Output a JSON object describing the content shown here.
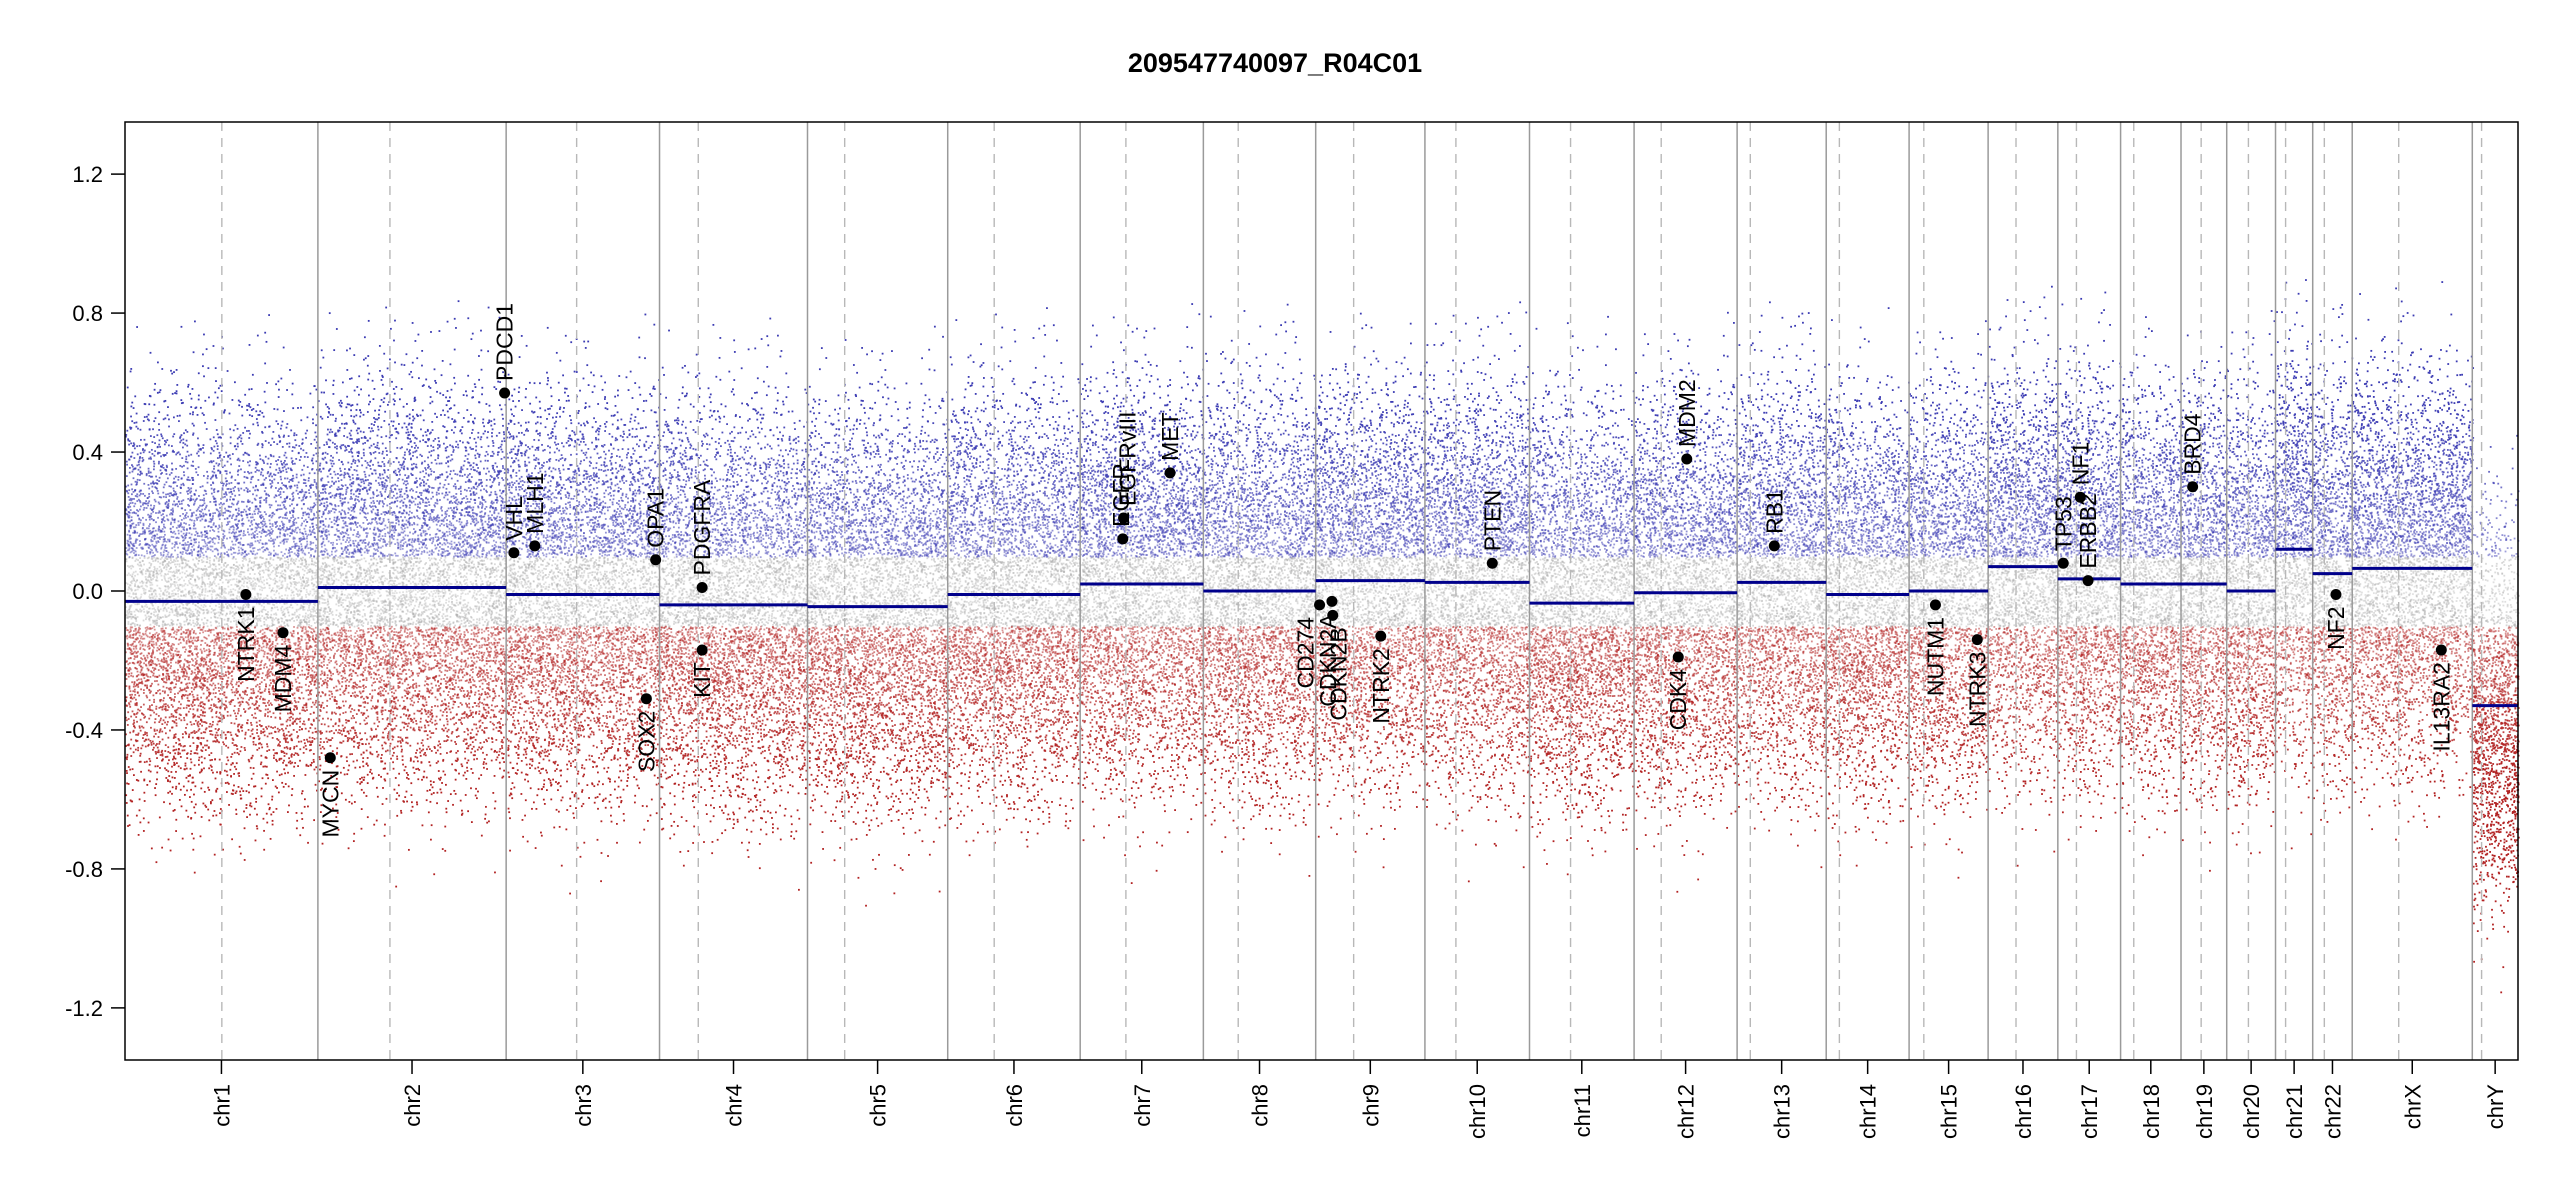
{
  "chart_data": {
    "type": "scatter",
    "title": "209547740097_R04C01",
    "xlabel": "",
    "ylabel": "",
    "ylim": [
      -1.35,
      1.35
    ],
    "yticks": [
      -1.2,
      -0.8,
      -0.4,
      0.0,
      0.4,
      0.8,
      1.2
    ],
    "ytick_labels": [
      "-1.2",
      "-0.8",
      "-0.4",
      "0.0",
      "0.4",
      "0.8",
      "1.2"
    ],
    "grid": false,
    "point_colors": {
      "gain": "#3b3bb3",
      "loss": "#b22222",
      "neutral": "#aaaaaa"
    },
    "segment_color": "#00008b",
    "gene_marker_color": "#000000",
    "chromosomes": [
      {
        "name": "chr1",
        "length": 249,
        "centromere": 125,
        "segments": [
          {
            "start": 0,
            "end": 249,
            "value": -0.03
          }
        ]
      },
      {
        "name": "chr2",
        "length": 243,
        "centromere": 93,
        "segments": [
          {
            "start": 0,
            "end": 243,
            "value": 0.01
          }
        ]
      },
      {
        "name": "chr3",
        "length": 198,
        "centromere": 91,
        "segments": [
          {
            "start": 0,
            "end": 198,
            "value": -0.01
          }
        ]
      },
      {
        "name": "chr4",
        "length": 191,
        "centromere": 50,
        "segments": [
          {
            "start": 0,
            "end": 191,
            "value": -0.04
          }
        ]
      },
      {
        "name": "chr5",
        "length": 181,
        "centromere": 48,
        "segments": [
          {
            "start": 0,
            "end": 181,
            "value": -0.045
          }
        ]
      },
      {
        "name": "chr6",
        "length": 171,
        "centromere": 60,
        "segments": [
          {
            "start": 0,
            "end": 171,
            "value": -0.01
          }
        ]
      },
      {
        "name": "chr7",
        "length": 159,
        "centromere": 59,
        "segments": [
          {
            "start": 0,
            "end": 159,
            "value": 0.02
          }
        ]
      },
      {
        "name": "chr8",
        "length": 145,
        "centromere": 45,
        "segments": [
          {
            "start": 0,
            "end": 145,
            "value": 0.0
          }
        ]
      },
      {
        "name": "chr9",
        "length": 141,
        "centromere": 49,
        "segments": [
          {
            "start": 0,
            "end": 141,
            "value": 0.03
          }
        ]
      },
      {
        "name": "chr10",
        "length": 135,
        "centromere": 40,
        "segments": [
          {
            "start": 0,
            "end": 135,
            "value": 0.025
          }
        ]
      },
      {
        "name": "chr11",
        "length": 135,
        "centromere": 53,
        "segments": [
          {
            "start": 0,
            "end": 135,
            "value": -0.035
          }
        ]
      },
      {
        "name": "chr12",
        "length": 133,
        "centromere": 35,
        "segments": [
          {
            "start": 0,
            "end": 133,
            "value": -0.005
          }
        ]
      },
      {
        "name": "chr13",
        "length": 115,
        "centromere": 17,
        "segments": [
          {
            "start": 0,
            "end": 115,
            "value": 0.025
          }
        ]
      },
      {
        "name": "chr14",
        "length": 107,
        "centromere": 17,
        "segments": [
          {
            "start": 0,
            "end": 107,
            "value": -0.01
          }
        ]
      },
      {
        "name": "chr15",
        "length": 102,
        "centromere": 19,
        "segments": [
          {
            "start": 0,
            "end": 102,
            "value": 0.0
          }
        ]
      },
      {
        "name": "chr16",
        "length": 90,
        "centromere": 36,
        "segments": [
          {
            "start": 0,
            "end": 90,
            "value": 0.07
          }
        ]
      },
      {
        "name": "chr17",
        "length": 81,
        "centromere": 24,
        "segments": [
          {
            "start": 0,
            "end": 81,
            "value": 0.035
          }
        ]
      },
      {
        "name": "chr18",
        "length": 78,
        "centromere": 17,
        "segments": [
          {
            "start": 0,
            "end": 78,
            "value": 0.02
          }
        ]
      },
      {
        "name": "chr19",
        "length": 59,
        "centromere": 26,
        "segments": [
          {
            "start": 0,
            "end": 59,
            "value": 0.02
          }
        ]
      },
      {
        "name": "chr20",
        "length": 63,
        "centromere": 28,
        "segments": [
          {
            "start": 0,
            "end": 63,
            "value": 0.0
          }
        ]
      },
      {
        "name": "chr21",
        "length": 48,
        "centromere": 13,
        "segments": [
          {
            "start": 0,
            "end": 48,
            "value": 0.12
          }
        ]
      },
      {
        "name": "chr22",
        "length": 51,
        "centromere": 15,
        "segments": [
          {
            "start": 0,
            "end": 51,
            "value": 0.05
          }
        ]
      },
      {
        "name": "chrX",
        "length": 155,
        "centromere": 60,
        "segments": [
          {
            "start": 0,
            "end": 155,
            "value": 0.065
          }
        ]
      },
      {
        "name": "chrY",
        "length": 59,
        "centromere": 12,
        "segments": [
          {
            "start": 0,
            "end": 59,
            "value": -0.33
          }
        ]
      }
    ],
    "genes": [
      {
        "name": "NTRK1",
        "chr": "chr1",
        "pos": 156,
        "value": -0.01
      },
      {
        "name": "MDM4",
        "chr": "chr1",
        "pos": 204,
        "value": -0.12
      },
      {
        "name": "MYCN",
        "chr": "chr2",
        "pos": 16,
        "value": -0.48
      },
      {
        "name": "PDCD1",
        "chr": "chr2",
        "pos": 241,
        "value": 0.57
      },
      {
        "name": "VHL",
        "chr": "chr3",
        "pos": 10,
        "value": 0.11
      },
      {
        "name": "MLH1",
        "chr": "chr3",
        "pos": 37,
        "value": 0.13
      },
      {
        "name": "SOX2",
        "chr": "chr3",
        "pos": 181,
        "value": -0.31
      },
      {
        "name": "OPA1",
        "chr": "chr3",
        "pos": 193,
        "value": 0.09
      },
      {
        "name": "PDGFRA",
        "chr": "chr4",
        "pos": 55,
        "value": 0.01
      },
      {
        "name": "KIT",
        "chr": "chr4",
        "pos": 55,
        "value": -0.17
      },
      {
        "name": "EGFR",
        "chr": "chr7",
        "pos": 55,
        "value": 0.15
      },
      {
        "name": "EGFRvIII",
        "chr": "chr7",
        "pos": 56,
        "value": 0.21
      },
      {
        "name": "MET",
        "chr": "chr7",
        "pos": 116,
        "value": 0.34
      },
      {
        "name": "CD274",
        "chr": "chr9",
        "pos": 5,
        "value": -0.04
      },
      {
        "name": "CDKN2A",
        "chr": "chr9",
        "pos": 21,
        "value": -0.03
      },
      {
        "name": "CDKN2B",
        "chr": "chr9",
        "pos": 22,
        "value": -0.07
      },
      {
        "name": "NTRK2",
        "chr": "chr9",
        "pos": 84,
        "value": -0.13
      },
      {
        "name": "PTEN",
        "chr": "chr10",
        "pos": 87,
        "value": 0.08
      },
      {
        "name": "CDK4",
        "chr": "chr12",
        "pos": 57,
        "value": -0.19
      },
      {
        "name": "MDM2",
        "chr": "chr12",
        "pos": 68,
        "value": 0.38
      },
      {
        "name": "RB1",
        "chr": "chr13",
        "pos": 48,
        "value": 0.13
      },
      {
        "name": "NUTM1",
        "chr": "chr15",
        "pos": 34,
        "value": -0.04
      },
      {
        "name": "NTRK3",
        "chr": "chr15",
        "pos": 88,
        "value": -0.14
      },
      {
        "name": "TP53",
        "chr": "chr17",
        "pos": 7,
        "value": 0.08
      },
      {
        "name": "NF1",
        "chr": "chr17",
        "pos": 29,
        "value": 0.27
      },
      {
        "name": "ERBB2",
        "chr": "chr17",
        "pos": 39,
        "value": 0.03
      },
      {
        "name": "BRD4",
        "chr": "chr19",
        "pos": 15,
        "value": 0.3
      },
      {
        "name": "NF2",
        "chr": "chr22",
        "pos": 30,
        "value": -0.01
      },
      {
        "name": "IL13RA2",
        "chr": "chrX",
        "pos": 115,
        "value": -0.17
      }
    ],
    "gene_label_offsets": {
      "EGFR": -2,
      "EGFRvIII": 4,
      "CD274": -14,
      "CDKN2A": -4,
      "CDKN2B": 6
    }
  }
}
